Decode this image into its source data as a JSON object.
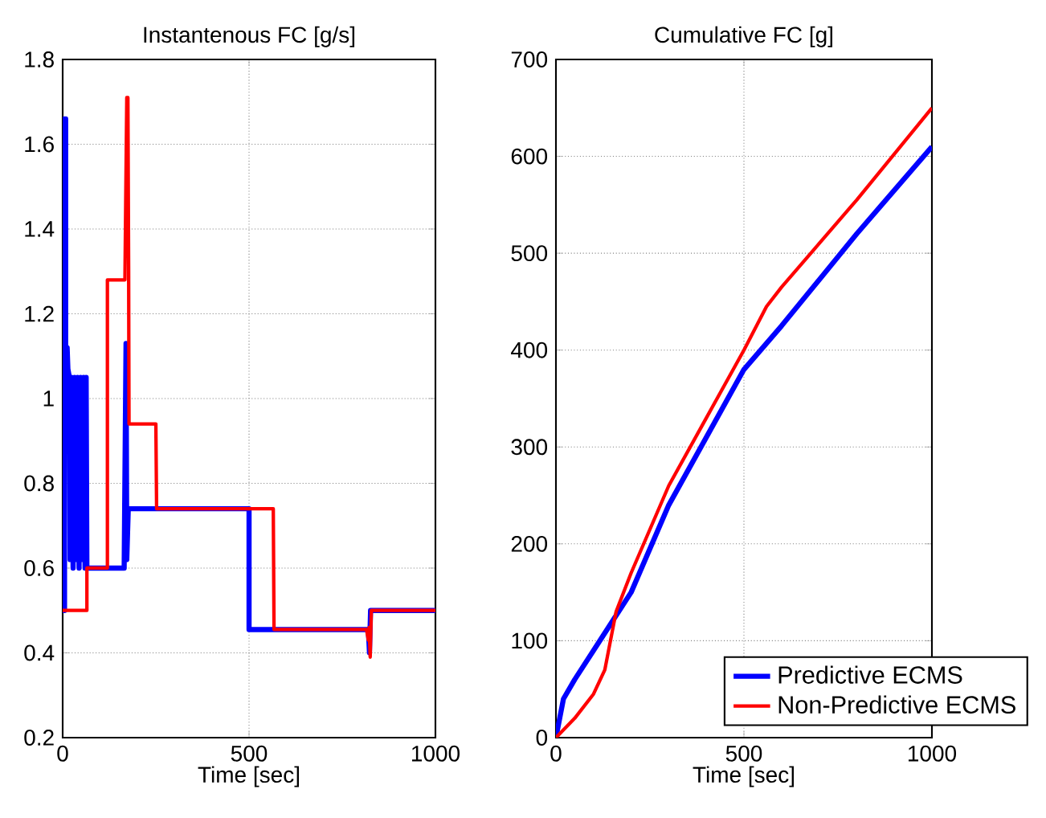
{
  "chart_data": [
    {
      "type": "line",
      "title": "Instantenous FC [g/s]",
      "xlabel": "Time [sec]",
      "xlim": [
        0,
        1000
      ],
      "ylim": [
        0.2,
        1.8
      ],
      "xticks": [
        0,
        500,
        1000
      ],
      "yticks": [
        0.2,
        0.4,
        0.6,
        0.8,
        1,
        1.2,
        1.4,
        1.6,
        1.8
      ],
      "grid": true,
      "legend": false,
      "series": [
        {
          "color": "#0000ff",
          "x": [
            0,
            5,
            5,
            8,
            8,
            12,
            14,
            18,
            20,
            24,
            28,
            32,
            36,
            40,
            44,
            48,
            52,
            56,
            60,
            63,
            65,
            165,
            170,
            172,
            176,
            500,
            500,
            820,
            823,
            826,
            1000
          ],
          "values": [
            0.5,
            0.5,
            1.66,
            1.66,
            1.12,
            1.12,
            1.07,
            1.05,
            0.62,
            1.05,
            0.6,
            1.05,
            0.62,
            1.05,
            0.6,
            1.05,
            0.62,
            1.05,
            0.6,
            1.05,
            0.6,
            0.6,
            1.13,
            0.62,
            0.74,
            0.74,
            0.455,
            0.455,
            0.4,
            0.5,
            0.5
          ]
        },
        {
          "color": "#ff0000",
          "x": [
            0,
            65,
            65,
            120,
            120,
            167,
            172,
            175,
            177,
            178,
            250,
            252,
            565,
            567,
            815,
            820,
            822,
            825,
            828,
            1000
          ],
          "values": [
            0.5,
            0.5,
            0.6,
            0.6,
            1.28,
            1.28,
            1.71,
            1.71,
            1.3,
            0.94,
            0.94,
            0.74,
            0.74,
            0.455,
            0.455,
            0.43,
            0.46,
            0.39,
            0.5,
            0.5
          ]
        }
      ]
    },
    {
      "type": "line",
      "title": "Cumulative FC [g]",
      "xlabel": "Time [sec]",
      "xlim": [
        0,
        1000
      ],
      "ylim": [
        0,
        700
      ],
      "xticks": [
        0,
        500,
        1000
      ],
      "yticks": [
        0,
        100,
        200,
        300,
        400,
        500,
        600,
        700
      ],
      "grid": true,
      "legend": "bottom right",
      "series": [
        {
          "name": "Predictive ECMS",
          "color": "#0000ff",
          "x": [
            0,
            20,
            50,
            100,
            150,
            200,
            300,
            400,
            500,
            600,
            800,
            1000
          ],
          "values": [
            0,
            40,
            60,
            90,
            120,
            150,
            240,
            310,
            380,
            425,
            520,
            610
          ]
        },
        {
          "name": "Non-Predictive ECMS",
          "color": "#ff0000",
          "x": [
            0,
            50,
            100,
            130,
            160,
            200,
            250,
            300,
            400,
            500,
            560,
            600,
            800,
            1000
          ],
          "values": [
            0,
            20,
            45,
            70,
            130,
            170,
            215,
            260,
            330,
            400,
            445,
            465,
            555,
            650
          ]
        }
      ]
    }
  ]
}
